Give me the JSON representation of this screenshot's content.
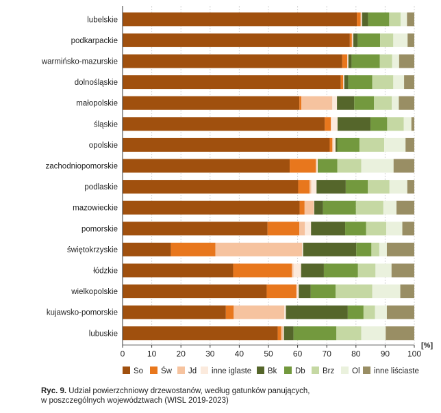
{
  "chart_data": {
    "type": "bar",
    "orientation": "horizontal",
    "stacked": true,
    "categories": [
      "lubelskie",
      "podkarpackie",
      "warmińsko-mazurskie",
      "dolnośląskie",
      "małopolskie",
      "śląskie",
      "opolskie",
      "zachodniopomorskie",
      "podlaskie",
      "mazowieckie",
      "pomorskie",
      "świętokrzyskie",
      "łódzkie",
      "wielkopolskie",
      "kujawsko-pomorskie",
      "lubuskie"
    ],
    "series": [
      {
        "name": "So",
        "color": "#a0500e",
        "values": [
          80.3,
          77.9,
          75.3,
          74.8,
          60.6,
          69.3,
          71.0,
          57.3,
          60.2,
          60.7,
          49.7,
          16.6,
          37.9,
          49.4,
          35.4,
          53.2
        ]
      },
      {
        "name": "Św",
        "color": "#e8771d",
        "values": [
          1.3,
          0.7,
          1.7,
          0.8,
          0.7,
          2.1,
          0.9,
          8.9,
          3.9,
          1.7,
          10.9,
          15.2,
          20.1,
          10.1,
          2.7,
          1.2
        ]
      },
      {
        "name": "Jd",
        "color": "#f6c39f",
        "values": [
          0.2,
          0.2,
          0.1,
          0.1,
          10.6,
          0.1,
          0.3,
          0.4,
          0.6,
          3.1,
          1.9,
          29.7,
          0.6,
          0.4,
          17.3,
          0.6
        ]
      },
      {
        "name": "inne iglaste",
        "color": "#fbeadd",
        "values": [
          0.3,
          0.3,
          0.3,
          0.3,
          1.6,
          2.2,
          0.8,
          0.3,
          1.8,
          0.2,
          2.1,
          0.4,
          2.6,
          0.5,
          0.6,
          0.3
        ]
      },
      {
        "name": "Bk",
        "color": "#55662b",
        "values": [
          2.1,
          1.5,
          1.1,
          1.4,
          5.9,
          11.3,
          0.6,
          0.1,
          10.0,
          3.0,
          11.7,
          18.2,
          7.8,
          4.1,
          21.2,
          3.3
        ]
      },
      {
        "name": "Db",
        "color": "#73993e",
        "values": [
          7.2,
          7.7,
          9.7,
          8.2,
          6.8,
          5.7,
          7.6,
          6.6,
          7.6,
          11.3,
          7.2,
          5.2,
          11.7,
          8.5,
          5.4,
          14.7
        ]
      },
      {
        "name": "Brz",
        "color": "#c5d8a3",
        "values": [
          3.9,
          4.5,
          4.2,
          7.2,
          6.1,
          5.7,
          8.5,
          8.2,
          7.4,
          9.4,
          6.9,
          2.7,
          6.0,
          12.6,
          3.9,
          8.5
        ]
      },
      {
        "name": "Ol",
        "color": "#eaf1dd",
        "values": [
          2.2,
          4.9,
          2.4,
          3.7,
          2.4,
          2.6,
          7.3,
          11.1,
          6.1,
          4.5,
          5.5,
          2.6,
          5.5,
          9.6,
          4.1,
          8.4
        ]
      },
      {
        "name": "inne liściaste",
        "color": "#998e64",
        "values": [
          2.5,
          2.3,
          5.2,
          3.5,
          5.3,
          1.0,
          3.0,
          7.1,
          2.4,
          6.1,
          4.1,
          9.4,
          7.8,
          4.8,
          9.4,
          9.8
        ]
      }
    ],
    "xlim": [
      0,
      100
    ],
    "xticks": [
      0,
      10,
      20,
      30,
      40,
      50,
      60,
      70,
      80,
      90,
      100
    ],
    "unit_label": "[%]",
    "grid": true,
    "legend_position": "bottom"
  },
  "caption": {
    "label": "Ryc. 9.",
    "line1": "Udział powierzchniowy drzewostanów, według gatunków panujących,",
    "line2": "w poszczególnych województwach (WISL 2019-2023)"
  }
}
